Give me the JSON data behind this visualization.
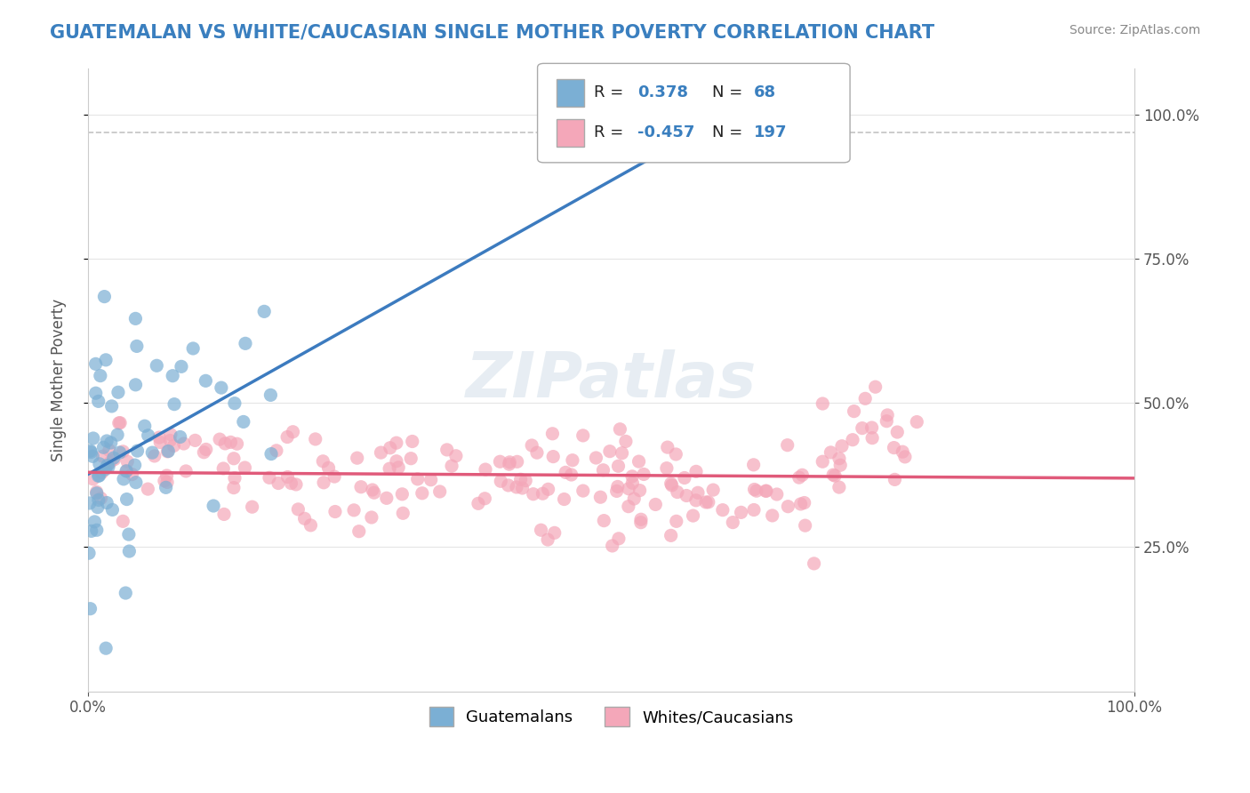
{
  "title": "GUATEMALAN VS WHITE/CAUCASIAN SINGLE MOTHER POVERTY CORRELATION CHART",
  "source": "Source: ZipAtlas.com",
  "xlabel": "",
  "ylabel": "Single Mother Poverty",
  "xlim": [
    0,
    1
  ],
  "ylim": [
    0,
    1
  ],
  "xtick_labels": [
    "0.0%",
    "100.0%"
  ],
  "ytick_labels": [
    "25.0%",
    "50.0%",
    "75.0%",
    "100.0%"
  ],
  "legend_labels": [
    "Guatemalans",
    "Whites/Caucasians"
  ],
  "r_guatemalan": 0.378,
  "n_guatemalan": 68,
  "r_white": -0.457,
  "n_white": 197,
  "color_guatemalan": "#7bafd4",
  "color_white": "#f4a7b9",
  "color_guatemalan_line": "#3c7bbf",
  "color_white_line": "#e05a7a",
  "watermark": "ZIPatlas",
  "background_color": "#ffffff",
  "grid_color": "#cccccc",
  "scatter_alpha": 0.7,
  "scatter_size": 120,
  "title_color": "#3a7fbf",
  "source_color": "#888888"
}
